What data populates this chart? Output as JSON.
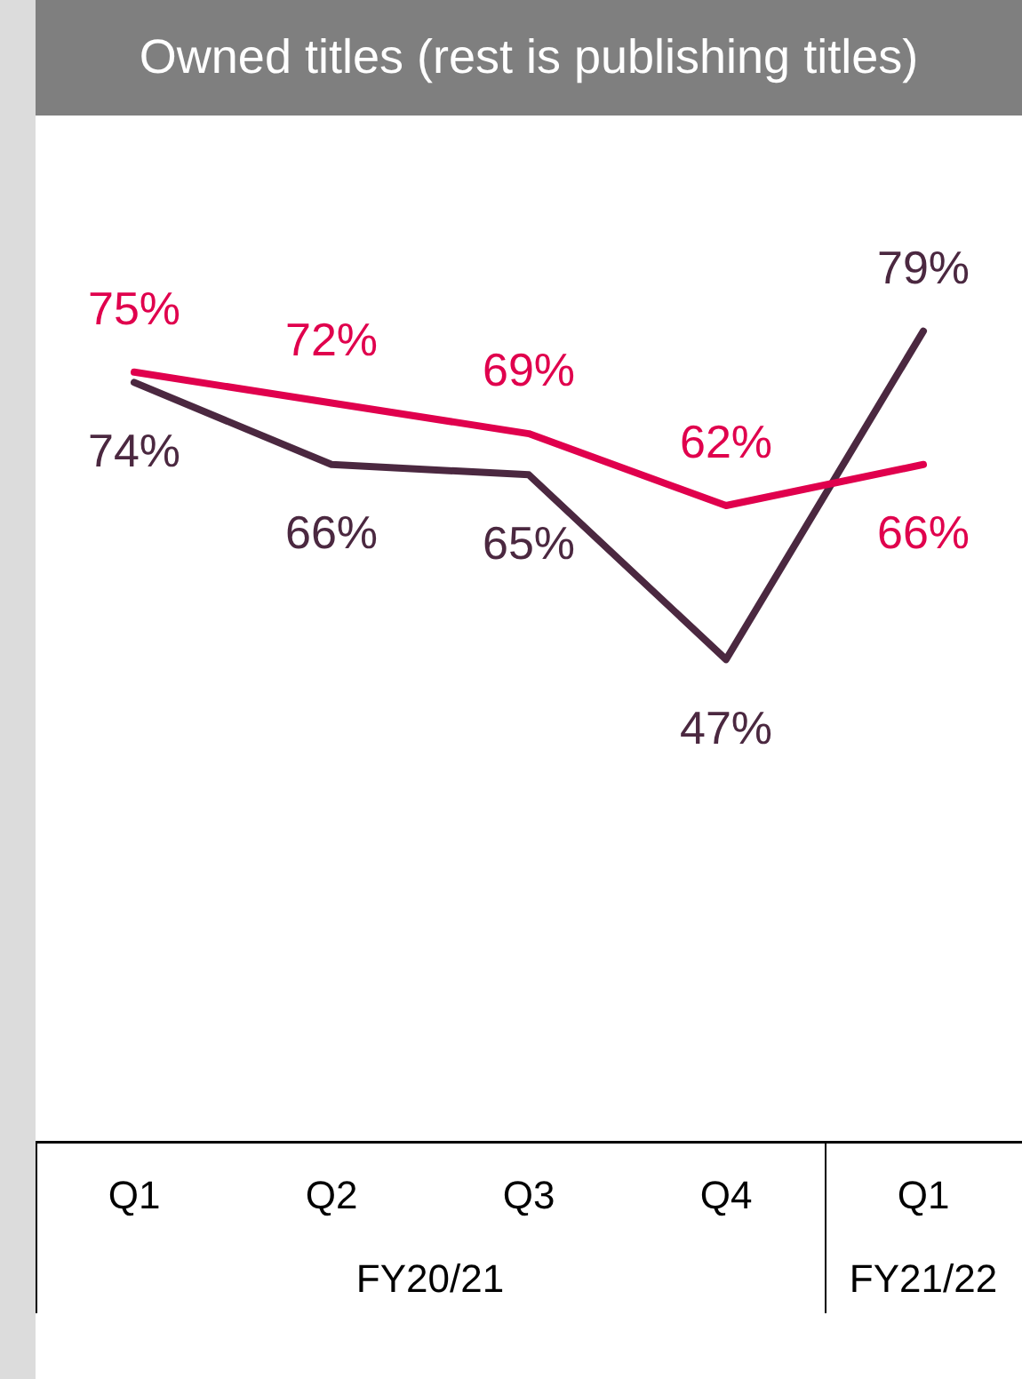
{
  "chart_data": {
    "type": "line",
    "title": "Owned titles (rest is publishing titles)",
    "categories": [
      "Q1",
      "Q2",
      "Q3",
      "Q4",
      "Q1"
    ],
    "series": [
      {
        "color": "#e0004d",
        "values": [
          75,
          72,
          69,
          62,
          66
        ],
        "value_labels": [
          "75%",
          "72%",
          "69%",
          "62%",
          "66%"
        ]
      },
      {
        "color": "#4b2840",
        "values": [
          74,
          66,
          65,
          47,
          79
        ],
        "value_labels": [
          "74%",
          "66%",
          "65%",
          "47%",
          "79%"
        ]
      }
    ],
    "grid": false,
    "legend": false,
    "marker": "none",
    "annotations": [
      "FY20/21",
      "FY21/22"
    ]
  }
}
